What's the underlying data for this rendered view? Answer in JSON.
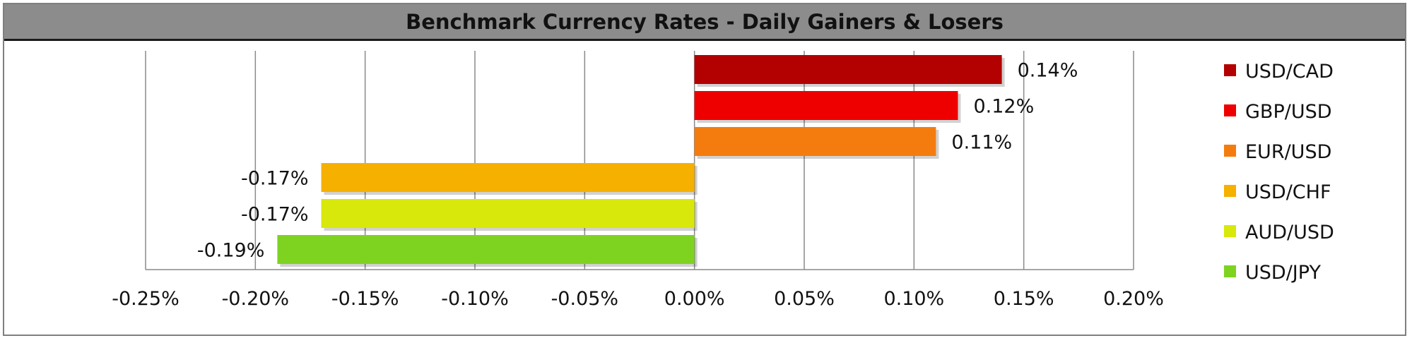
{
  "chart_data": {
    "type": "bar",
    "orientation": "horizontal",
    "title": "Benchmark Currency Rates - Daily Gainers & Losers",
    "categories": [
      "USD/CAD",
      "GBP/USD",
      "EUR/USD",
      "USD/CHF",
      "AUD/USD",
      "USD/JPY"
    ],
    "values": [
      0.14,
      0.12,
      0.11,
      -0.17,
      -0.17,
      -0.19
    ],
    "data_labels": [
      "0.14%",
      "0.12%",
      "0.11%",
      "-0.17%",
      "-0.17%",
      "-0.19%"
    ],
    "colors": [
      "#b30000",
      "#ee0000",
      "#f47c0e",
      "#f5b000",
      "#d8e80a",
      "#7ed321"
    ],
    "xlim": [
      -0.25,
      0.2
    ],
    "x_ticks": [
      -0.25,
      -0.2,
      -0.15,
      -0.1,
      -0.05,
      0.0,
      0.05,
      0.1,
      0.15,
      0.2
    ],
    "x_tick_labels": [
      "-0.25%",
      "-0.20%",
      "-0.15%",
      "-0.10%",
      "-0.05%",
      "0.00%",
      "0.05%",
      "0.10%",
      "0.15%",
      "0.20%"
    ],
    "xlabel": "",
    "ylabel": "",
    "grid": "vertical",
    "legend": "right"
  }
}
